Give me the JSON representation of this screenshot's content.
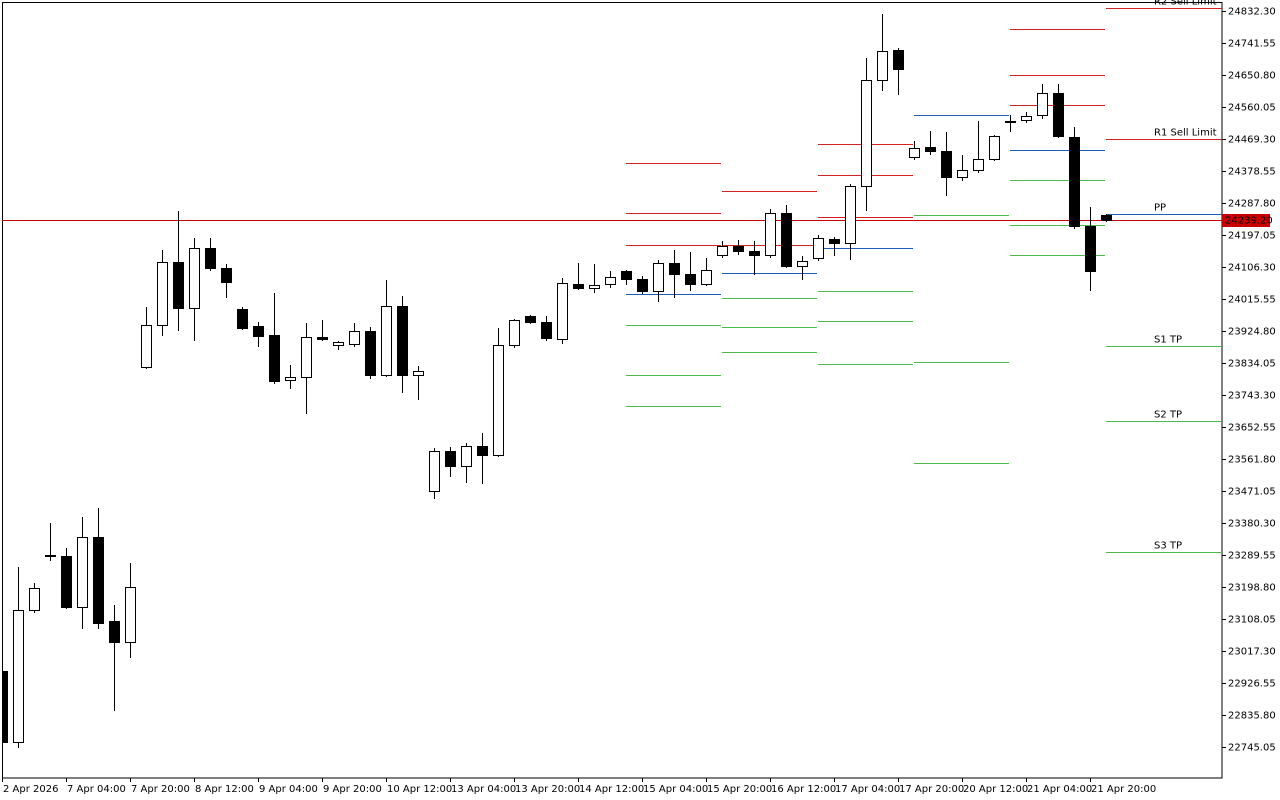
{
  "chart_data": {
    "type": "candlestick",
    "categories": [
      "2 Apr 2026",
      null,
      null,
      null,
      "7 Apr 04:00",
      null,
      null,
      null,
      "7 Apr 20:00",
      null,
      null,
      null,
      "8 Apr 12:00",
      null,
      null,
      null,
      "9 Apr 04:00",
      null,
      null,
      null,
      "9 Apr 20:00",
      null,
      null,
      null,
      "10 Apr 12:00",
      null,
      null,
      null,
      "13 Apr 04:00",
      null,
      null,
      null,
      "13 Apr 20:00",
      null,
      null,
      null,
      "14 Apr 12:00",
      null,
      null,
      null,
      "15 Apr 04:00",
      null,
      null,
      null,
      "15 Apr 20:00",
      null,
      null,
      null,
      "16 Apr 12:00",
      null,
      null,
      null,
      "17 Apr 04:00",
      null,
      null,
      null,
      "17 Apr 20:00",
      null,
      null,
      null,
      "20 Apr 12:00",
      null,
      null,
      null,
      "21 Apr 04:00",
      null,
      null,
      null,
      "21 Apr 20:00",
      null
    ],
    "open": [
      22960,
      22759,
      23134,
      23287,
      23287,
      23142,
      23341,
      23102,
      23043,
      23823,
      23942,
      24120,
      23990,
      24160,
      24103,
      23987,
      23939,
      23913,
      23786,
      23794,
      23908,
      23885,
      23888,
      23925,
      23800,
      23996,
      23800,
      23471,
      23584,
      23542,
      23599,
      23573,
      23885,
      23967,
      23950,
      23902,
      24058,
      24047,
      24058,
      24095,
      24072,
      24038,
      24118,
      24086,
      24058,
      24140,
      24166,
      24152,
      24140,
      24259,
      24109,
      24132,
      24186,
      24174,
      24336,
      24637,
      24722,
      24418,
      24447,
      24435,
      24362,
      24381,
      24413,
      24518,
      24523,
      24537,
      24600,
      24475,
      24223,
      24254
    ],
    "high": [
      22962,
      23256,
      23210,
      23380,
      23309,
      23397,
      23423,
      23148,
      23267,
      23993,
      24154,
      24265,
      24188,
      24188,
      24115,
      23993,
      23950,
      24033,
      23828,
      23947,
      23956,
      23896,
      23947,
      23936,
      24069,
      24024,
      23826,
      23593,
      23596,
      23607,
      23636,
      23933,
      23959,
      23970,
      23967,
      24075,
      24118,
      24115,
      24095,
      24097,
      24081,
      24126,
      24154,
      24149,
      24132,
      24180,
      24183,
      24180,
      24271,
      24282,
      24137,
      24197,
      24191,
      24342,
      24699,
      24824,
      24727,
      24464,
      24492,
      24489,
      24424,
      24520,
      24481,
      24537,
      24546,
      24625,
      24625,
      24503,
      24276,
      24257
    ],
    "low": [
      22757,
      22745,
      23128,
      23275,
      23139,
      23082,
      23082,
      22850,
      23000,
      23820,
      23913,
      23928,
      23899,
      24098,
      24021,
      23930,
      23882,
      23777,
      23763,
      23692,
      23899,
      23874,
      23882,
      23791,
      23797,
      23752,
      23732,
      23451,
      23514,
      23497,
      23494,
      23570,
      23879,
      23947,
      23899,
      23891,
      24044,
      24035,
      24050,
      24058,
      24033,
      24010,
      24021,
      24041,
      24055,
      24135,
      24143,
      24086,
      24135,
      24106,
      24072,
      24126,
      24140,
      24129,
      24268,
      24608,
      24597,
      24413,
      24427,
      24311,
      24353,
      24376,
      24410,
      24492,
      24518,
      24529,
      24475,
      24217,
      24041,
      24237
    ],
    "close": [
      22759,
      23134,
      23196,
      23290,
      23142,
      23341,
      23097,
      23043,
      23199,
      23942,
      24120,
      23990,
      24160,
      24103,
      24064,
      23933,
      23911,
      23783,
      23794,
      23908,
      23902,
      23894,
      23925,
      23800,
      23996,
      23800,
      23811,
      23584,
      23542,
      23599,
      23573,
      23885,
      23956,
      23950,
      23905,
      24061,
      24047,
      24055,
      24078,
      24072,
      24038,
      24118,
      24086,
      24058,
      24098,
      24166,
      24152,
      24140,
      24259,
      24109,
      24123,
      24188,
      24174,
      24336,
      24637,
      24719,
      24668,
      24444,
      24435,
      24362,
      24381,
      24413,
      24478,
      24520,
      24535,
      24600,
      24478,
      24223,
      24095,
      24239.2
    ],
    "bull_color": "#ffffff",
    "bear_color": "#000000",
    "ylim": [
      22657.1,
      24857.8
    ],
    "yticks": [
      {
        "value": 24832.3,
        "label": "24832.30"
      },
      {
        "value": 24741.55,
        "label": "24741.55"
      },
      {
        "value": 24650.8,
        "label": "24650.80"
      },
      {
        "value": 24560.05,
        "label": "24560.05"
      },
      {
        "value": 24469.3,
        "label": "24469.30"
      },
      {
        "value": 24378.55,
        "label": "24378.55"
      },
      {
        "value": 24287.8,
        "label": "24287.80"
      },
      {
        "value": 24197.05,
        "label": "24197.05"
      },
      {
        "value": 24106.3,
        "label": "24106.30"
      },
      {
        "value": 24015.55,
        "label": "24015.55"
      },
      {
        "value": 23924.8,
        "label": "23924.80"
      },
      {
        "value": 23834.05,
        "label": "23834.05"
      },
      {
        "value": 23743.3,
        "label": "23743.30"
      },
      {
        "value": 23652.55,
        "label": "23652.55"
      },
      {
        "value": 23561.8,
        "label": "23561.80"
      },
      {
        "value": 23471.05,
        "label": "23471.05"
      },
      {
        "value": 23380.3,
        "label": "23380.30"
      },
      {
        "value": 23289.55,
        "label": "23289.55"
      },
      {
        "value": 23198.8,
        "label": "23198.80"
      },
      {
        "value": 23108.05,
        "label": "23108.05"
      },
      {
        "value": 23017.3,
        "label": "23017.30"
      },
      {
        "value": 22926.55,
        "label": "22926.55"
      },
      {
        "value": 22835.8,
        "label": "22835.80"
      },
      {
        "value": 22745.05,
        "label": "22745.05"
      }
    ],
    "last_price": {
      "value": 24239.2,
      "label": "24239.20",
      "color": "#c80000"
    },
    "level_colors": {
      "resistance": "#d42020",
      "pivot": "#1c5cb4",
      "support": "#4cba4c"
    },
    "levels": [
      {
        "bars": [
          39,
          44
        ],
        "lines": [
          {
            "value": 24401,
            "kind": "resistance"
          },
          {
            "value": 24259,
            "kind": "resistance"
          },
          {
            "value": 24169,
            "kind": "resistance"
          },
          {
            "value": 24030,
            "kind": "pivot"
          },
          {
            "value": 23942,
            "kind": "support"
          },
          {
            "value": 23800,
            "kind": "support"
          },
          {
            "value": 23712,
            "kind": "support"
          }
        ]
      },
      {
        "bars": [
          45,
          50
        ],
        "lines": [
          {
            "value": 24322,
            "kind": "resistance"
          },
          {
            "value": 24169,
            "kind": "resistance"
          },
          {
            "value": 24089,
            "kind": "pivot"
          },
          {
            "value": 24018,
            "kind": "support"
          },
          {
            "value": 23936,
            "kind": "support"
          },
          {
            "value": 23865,
            "kind": "support"
          }
        ]
      },
      {
        "bars": [
          51,
          56
        ],
        "lines": [
          {
            "value": 24455,
            "kind": "resistance"
          },
          {
            "value": 24367,
            "kind": "resistance"
          },
          {
            "value": 24248,
            "kind": "resistance"
          },
          {
            "value": 24160,
            "kind": "pivot"
          },
          {
            "value": 24038,
            "kind": "support"
          },
          {
            "value": 23953,
            "kind": "support"
          },
          {
            "value": 23831,
            "kind": "support"
          }
        ]
      },
      {
        "bars": [
          57,
          62
        ],
        "lines": [
          {
            "value": 24537,
            "kind": "pivot"
          },
          {
            "value": 24253,
            "kind": "support"
          },
          {
            "value": 23837,
            "kind": "support"
          },
          {
            "value": 23550,
            "kind": "support"
          }
        ]
      },
      {
        "bars": [
          63,
          68
        ],
        "lines": [
          {
            "value": 24781,
            "kind": "resistance"
          },
          {
            "value": 24651,
            "kind": "resistance"
          },
          {
            "value": 24566,
            "kind": "resistance"
          },
          {
            "value": 24438,
            "kind": "pivot"
          },
          {
            "value": 24353,
            "kind": "support"
          },
          {
            "value": 24225,
            "kind": "support"
          },
          {
            "value": 24140,
            "kind": "support"
          }
        ]
      },
      {
        "bars": [
          69,
          69
        ],
        "lines": [
          {
            "value": 24841,
            "kind": "resistance",
            "label": "R2 Sell Limit"
          },
          {
            "value": 24469,
            "kind": "resistance",
            "label": "R1 Sell Limit"
          },
          {
            "value": 24257,
            "kind": "pivot",
            "label": "PP"
          },
          {
            "value": 23882,
            "kind": "support",
            "label": "S1 TP"
          },
          {
            "value": 23670,
            "kind": "support",
            "label": "S2 TP"
          },
          {
            "value": 23298,
            "kind": "support",
            "label": "S3 TP"
          }
        ]
      }
    ]
  }
}
